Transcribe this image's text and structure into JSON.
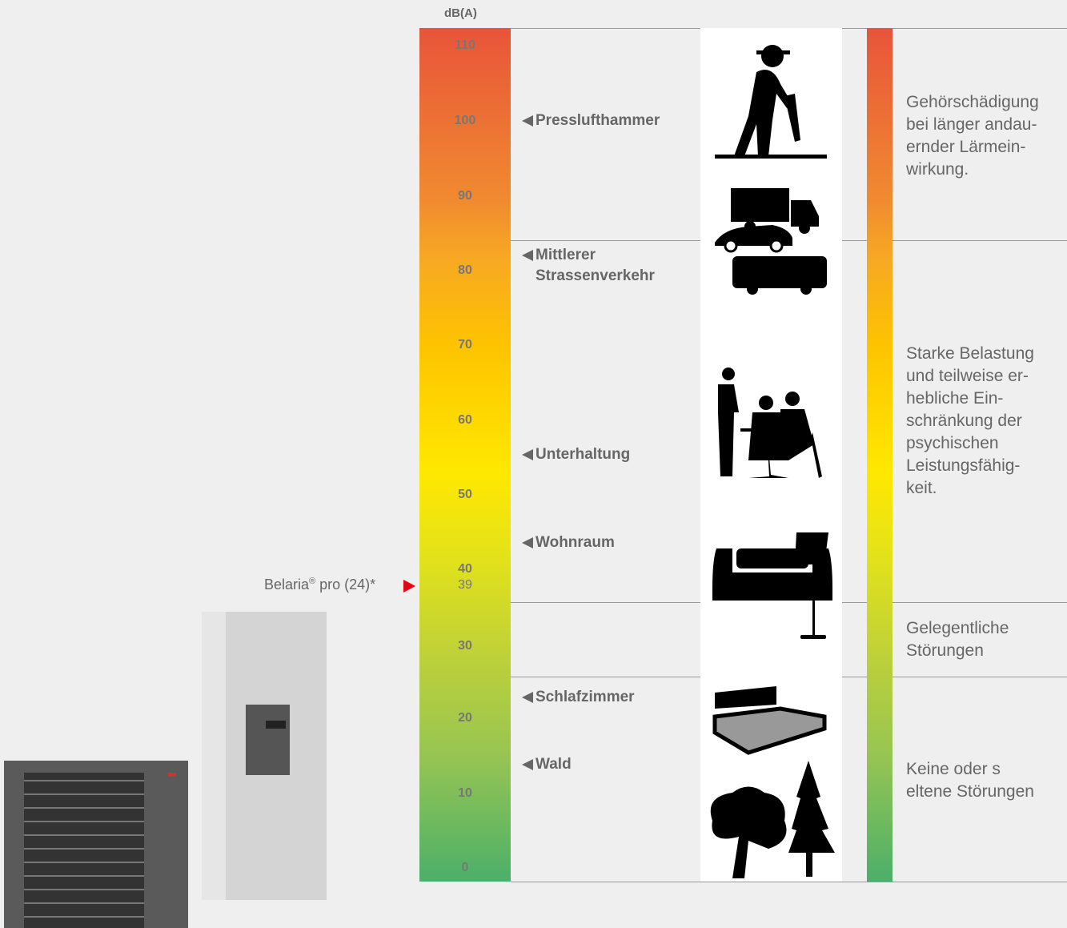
{
  "unit": "dB(A)",
  "scale_labels": [
    110,
    100,
    90,
    80,
    70,
    60,
    50,
    40,
    30,
    20,
    10,
    0
  ],
  "product": {
    "name": "Belaria",
    "mark": "®",
    "model": " pro (24)*",
    "value": 39
  },
  "sources": [
    [
      "Presslufthammer"
    ],
    [
      "Mittlerer",
      "Strassenverkehr"
    ],
    [
      "Unterhaltung"
    ],
    [
      "Wohnraum"
    ],
    [
      "Schlafzimmer"
    ],
    [
      "Wald"
    ]
  ],
  "zones": [
    [
      "Gehörschädigung",
      "bei länger andau-",
      "ernder Lärmein-",
      "wirkung."
    ],
    [
      "Starke Belastung",
      "und teilweise er-",
      "hebliche Ein-",
      "schränkung der",
      "psychischen",
      "Leistungsfähig-",
      "keit."
    ],
    [
      "Gelegentliche",
      "Störungen"
    ],
    [
      "Keine oder s",
      "eltene Störungen"
    ]
  ]
}
